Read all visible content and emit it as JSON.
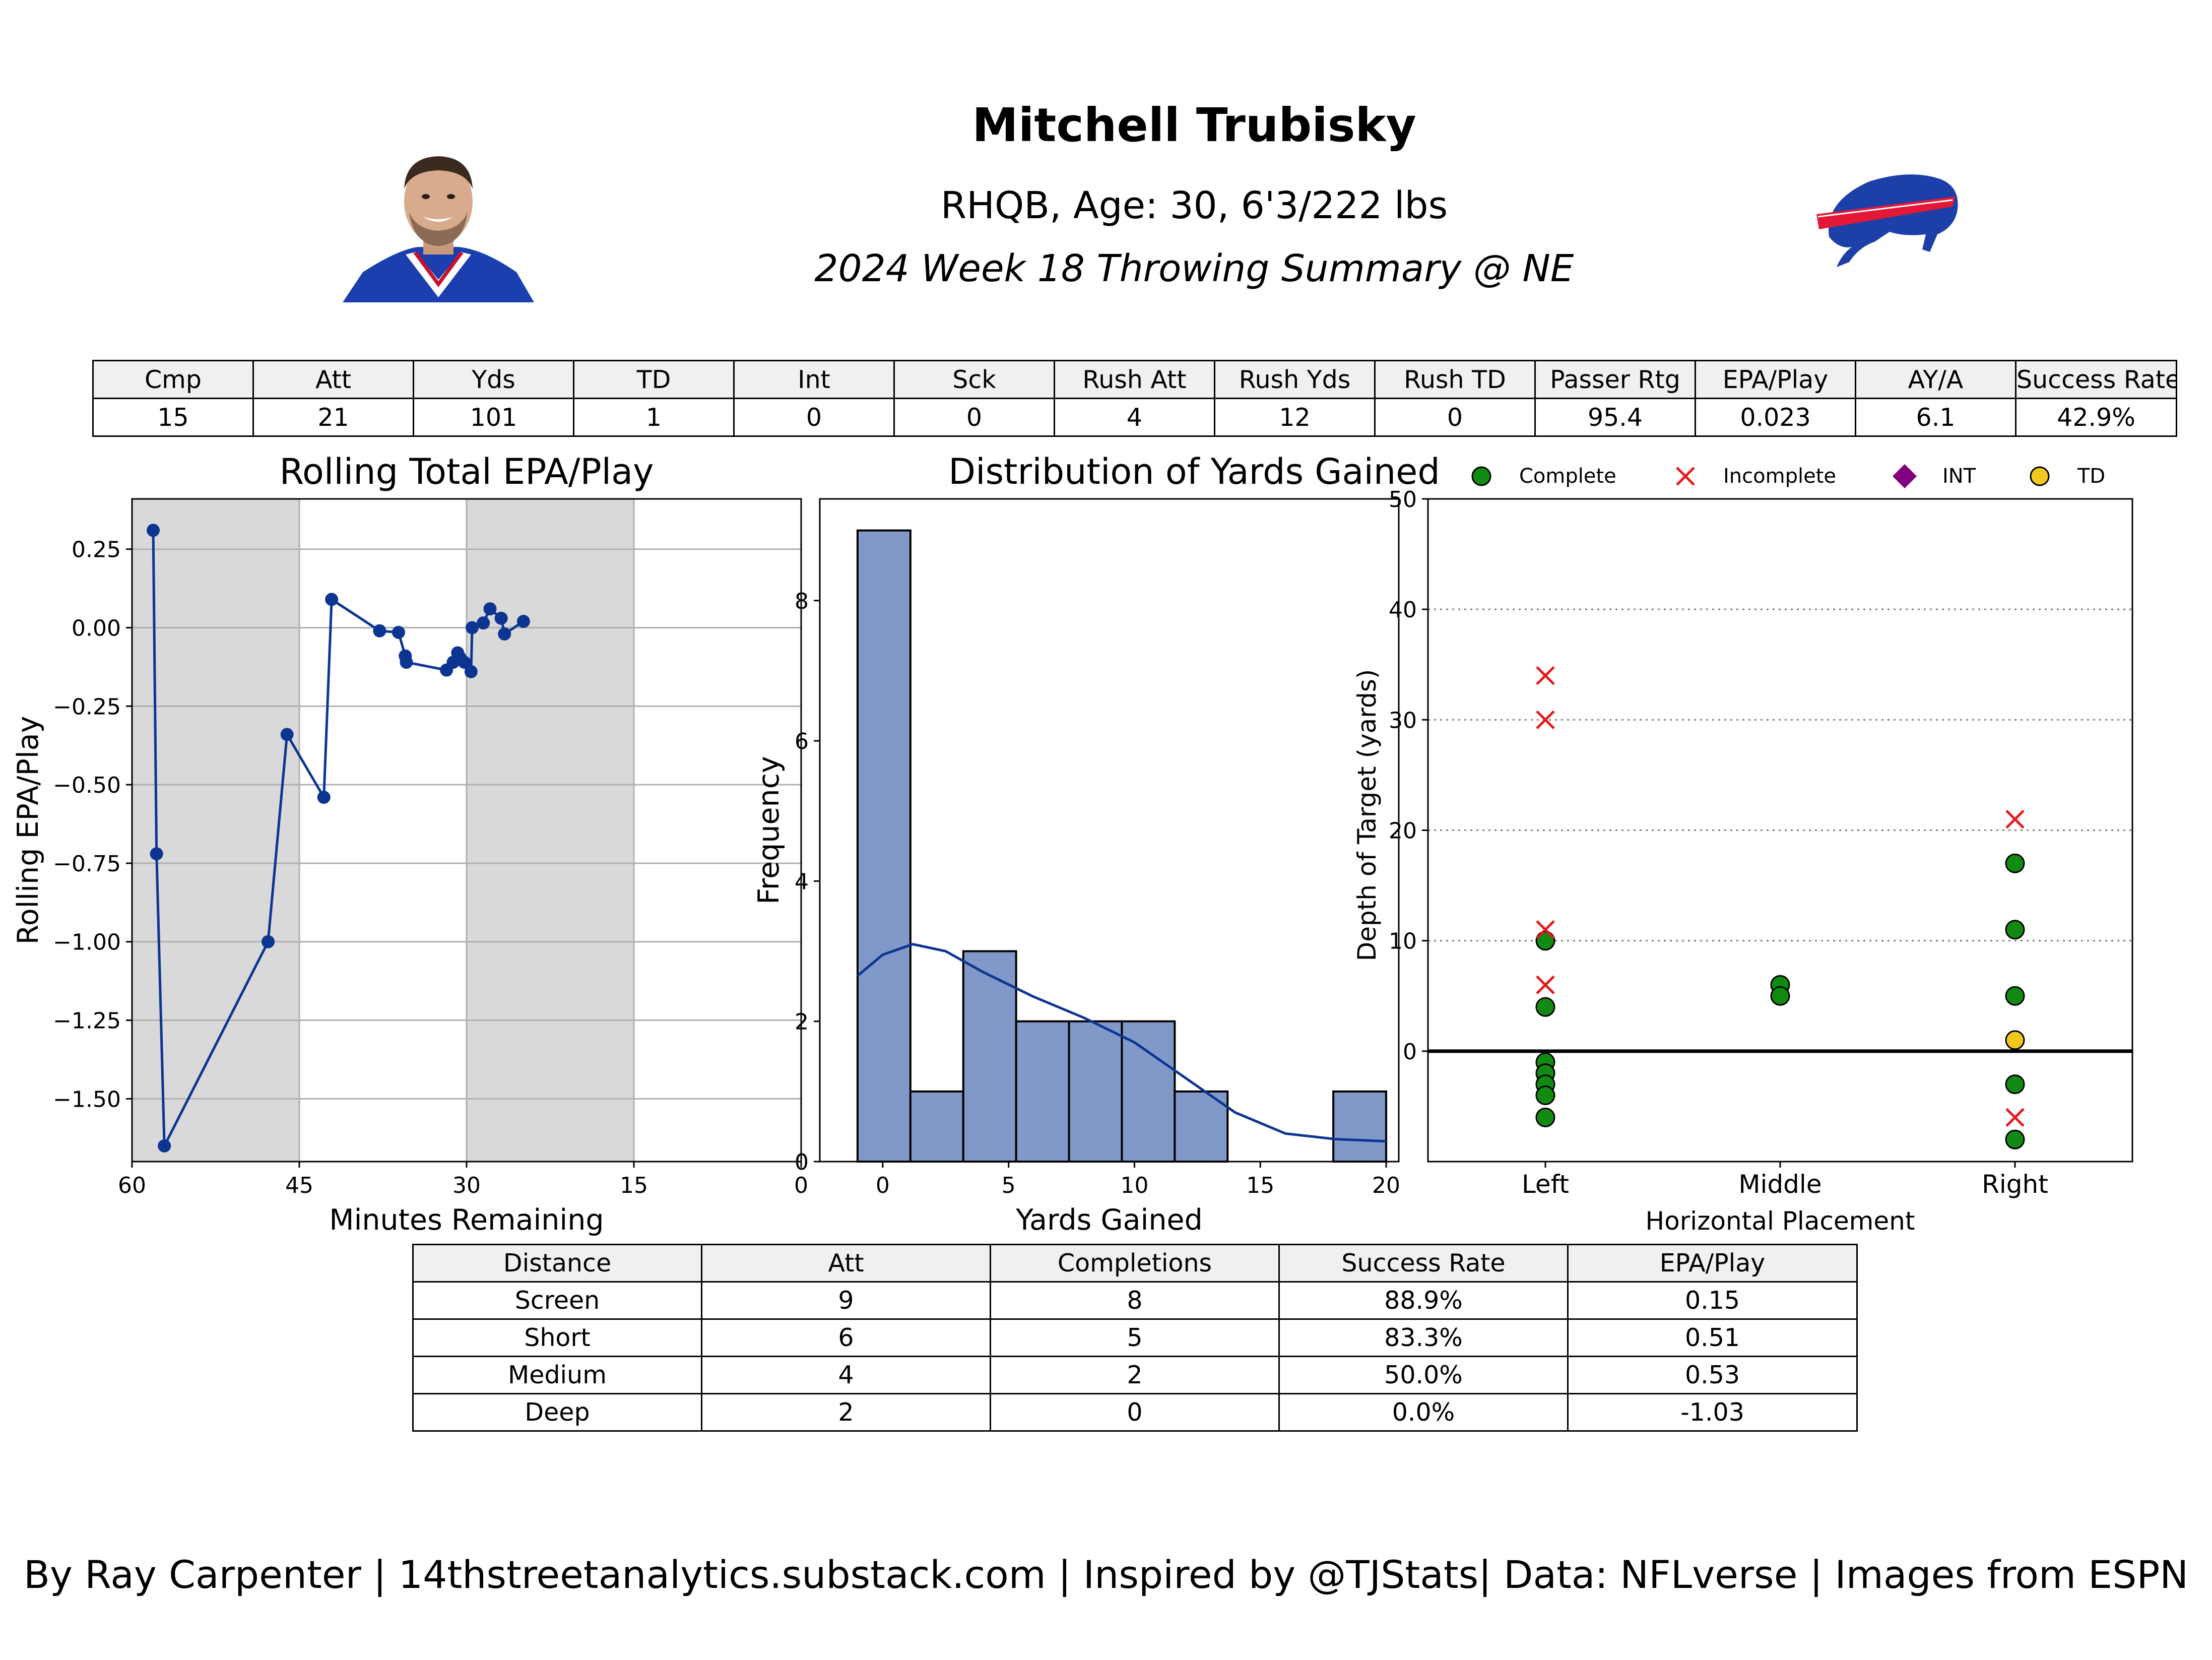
{
  "header": {
    "player_name": "Mitchell Trubisky",
    "player_info": "RHQB, Age: 30, 6'3/222 lbs",
    "game_summary": "2024 Week 18 Throwing Summary @ NE",
    "headshot_image": "player-headshot",
    "team_logo": "buffalo-bills-logo"
  },
  "summary_table": {
    "headers": [
      "Cmp",
      "Att",
      "Yds",
      "TD",
      "Int",
      "Sck",
      "Rush Att",
      "Rush Yds",
      "Rush TD",
      "Passer Rtg",
      "EPA/Play",
      "AY/A",
      "Success Rate"
    ],
    "values": [
      "15",
      "21",
      "101",
      "1",
      "0",
      "0",
      "4",
      "12",
      "0",
      "95.4",
      "0.023",
      "6.1",
      "42.9%"
    ]
  },
  "distance_table": {
    "headers": [
      "Distance",
      "Att",
      "Completions",
      "Success Rate",
      "EPA/Play"
    ],
    "rows": [
      [
        "Screen",
        "9",
        "8",
        "88.9%",
        "0.15"
      ],
      [
        "Short",
        "6",
        "5",
        "83.3%",
        "0.51"
      ],
      [
        "Medium",
        "4",
        "2",
        "50.0%",
        "0.53"
      ],
      [
        "Deep",
        "2",
        "0",
        "0.0%",
        "-1.03"
      ]
    ]
  },
  "footer": {
    "credit": "By Ray Carpenter | 14thstreetanalytics.substack.com | Inspired by @TJStats| Data: NFLverse | Images from ESPN"
  },
  "colors": {
    "line_blue": "#0b3591",
    "hist_fill": "#8099c8",
    "complete": "#118a11",
    "incomplete": "#e41a1c",
    "int": "#800080",
    "td": "#f2c81c",
    "shade": "#d9d9d9"
  },
  "chart_data": [
    {
      "type": "line",
      "title": "Rolling Total EPA/Play",
      "xlabel": "Minutes Remaining",
      "ylabel": "Rolling EPA/Play",
      "xlim": [
        60,
        0
      ],
      "ylim": [
        -1.7,
        0.41
      ],
      "x_ticks": [
        "60",
        "45",
        "30",
        "15",
        "0"
      ],
      "y_ticks": [
        "0.25",
        "0.00",
        "−0.25",
        "−0.50",
        "−0.75",
        "−1.00",
        "−1.25",
        "−1.50"
      ],
      "grid": "horizontal",
      "shaded_quarters": [
        [
          60,
          45
        ],
        [
          30,
          15
        ]
      ],
      "x": [
        58.1,
        57.8,
        57.1,
        47.8,
        46.1,
        42.8,
        42.1,
        37.8,
        36.1,
        35.5,
        35.4,
        31.8,
        31.2,
        30.8,
        30.6,
        30.2,
        29.6,
        29.5,
        28.5,
        27.9,
        26.9,
        26.6,
        24.9
      ],
      "y": [
        0.31,
        -0.72,
        -1.65,
        -1.0,
        -0.34,
        -0.54,
        0.09,
        -0.01,
        -0.015,
        -0.09,
        -0.11,
        -0.135,
        -0.11,
        -0.08,
        -0.095,
        -0.11,
        -0.14,
        0.0,
        0.015,
        0.06,
        0.03,
        -0.02,
        0.02
      ]
    },
    {
      "type": "bar",
      "subtype": "histogram",
      "title": "Distribution of Yards Gained",
      "xlabel": "Yards Gained",
      "ylabel": "Frequency",
      "xlim": [
        -2.5,
        20.5
      ],
      "ylim": [
        0,
        9.45
      ],
      "x_ticks": [
        "0",
        "5",
        "10",
        "15",
        "20"
      ],
      "y_ticks": [
        "0",
        "2",
        "4",
        "6",
        "8"
      ],
      "bin_edges": [
        -1,
        1.1,
        3.2,
        5.3,
        7.4,
        9.5,
        11.6,
        13.7,
        15.8,
        17.9,
        20
      ],
      "values": [
        9,
        1,
        3,
        2,
        2,
        2,
        1,
        0,
        0,
        1
      ],
      "kde_x": [
        -1,
        0,
        1.2,
        2.5,
        4,
        6,
        8,
        10,
        12,
        14,
        16,
        18,
        20
      ],
      "kde_y": [
        2.65,
        2.95,
        3.1,
        3.0,
        2.7,
        2.35,
        2.05,
        1.7,
        1.2,
        0.7,
        0.4,
        0.32,
        0.29
      ]
    },
    {
      "type": "scatter",
      "xlabel": "Horizontal Placement",
      "ylabel": "Depth of Target (yards)",
      "x_categories": [
        "Left",
        "Middle",
        "Right"
      ],
      "ylim": [
        -10,
        50
      ],
      "y_ticks": [
        "50",
        "40",
        "30",
        "20",
        "10",
        "0"
      ],
      "grid": "horizontal-dotted",
      "legend": [
        "Complete",
        "Incomplete",
        "INT",
        "TD"
      ],
      "legend_placement": "top",
      "series": [
        {
          "name": "Complete",
          "points": [
            [
              "Left",
              10
            ],
            [
              "Left",
              4
            ],
            [
              "Left",
              -1
            ],
            [
              "Left",
              -2
            ],
            [
              "Left",
              -3
            ],
            [
              "Left",
              -4
            ],
            [
              "Left",
              -6
            ],
            [
              "Middle",
              6
            ],
            [
              "Middle",
              5
            ],
            [
              "Right",
              17
            ],
            [
              "Right",
              11
            ],
            [
              "Right",
              5
            ],
            [
              "Right",
              -3
            ],
            [
              "Right",
              -8
            ]
          ]
        },
        {
          "name": "Incomplete",
          "points": [
            [
              "Left",
              34
            ],
            [
              "Left",
              30
            ],
            [
              "Left",
              11
            ],
            [
              "Left",
              6
            ],
            [
              "Right",
              21
            ],
            [
              "Right",
              -6
            ]
          ]
        },
        {
          "name": "INT",
          "points": []
        },
        {
          "name": "TD",
          "points": [
            [
              "Right",
              1
            ]
          ]
        }
      ]
    }
  ]
}
